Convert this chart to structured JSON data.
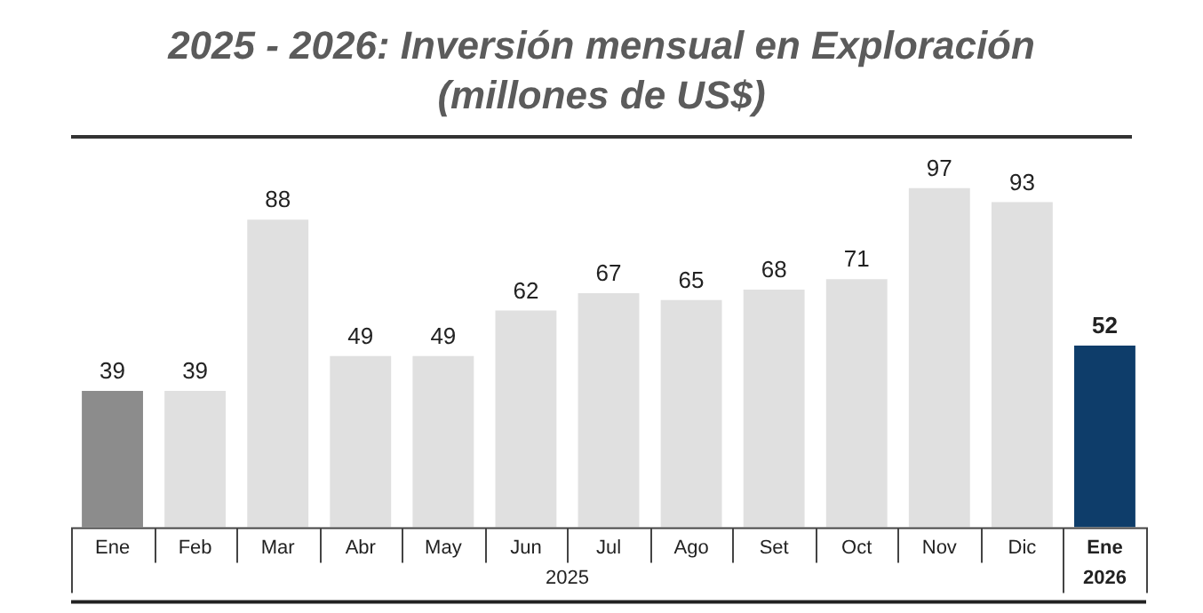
{
  "chart_data": {
    "type": "bar",
    "title": "2025 - 2026: Inversión mensual en Exploración (millones de US$)",
    "categories": [
      "Ene",
      "Feb",
      "Mar",
      "Abr",
      "May",
      "Jun",
      "Jul",
      "Ago",
      "Set",
      "Oct",
      "Nov",
      "Dic",
      "Ene"
    ],
    "values": [
      39,
      39,
      88,
      49,
      49,
      62,
      67,
      65,
      68,
      71,
      97,
      93,
      52
    ],
    "colors": [
      "#8c8c8c",
      "#e0e0e0",
      "#e0e0e0",
      "#e0e0e0",
      "#e0e0e0",
      "#e0e0e0",
      "#e0e0e0",
      "#e0e0e0",
      "#e0e0e0",
      "#e0e0e0",
      "#e0e0e0",
      "#e0e0e0",
      "#0e3d6a"
    ],
    "data_labels": true,
    "grid": false,
    "legend": false,
    "annotations": [
      "2025",
      "2026"
    ]
  }
}
